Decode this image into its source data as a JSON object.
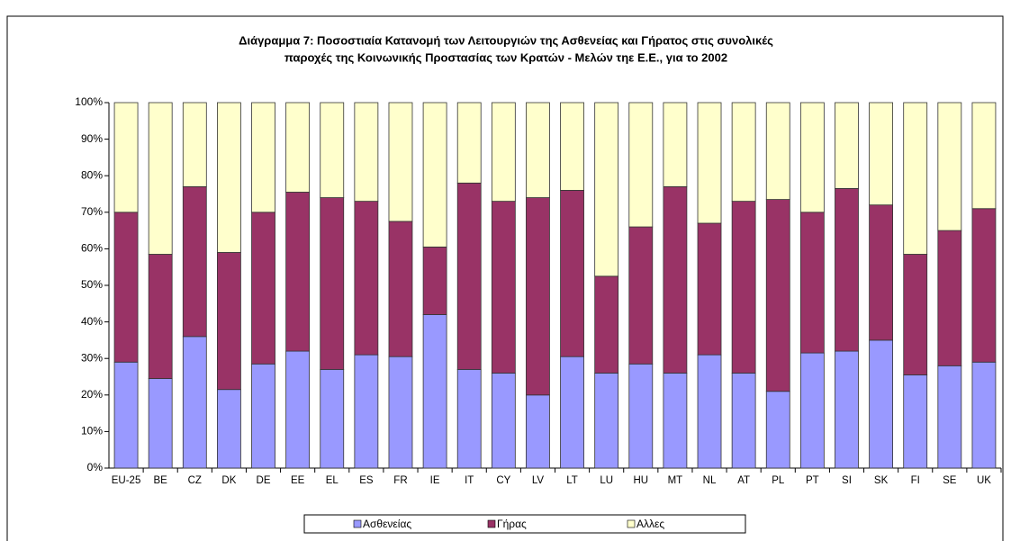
{
  "chart_data": {
    "type": "stacked_bar",
    "title": [
      "Διάγραμμα 7: Ποσοστιαία Κατανομή των Λειτουργιών της Ασθενείας και Γήρατος στις συνολικές",
      "παροχές της Κοινωνικής Προστασίας των Κρατών - Μελών τηε Ε.Ε., για το 2002"
    ],
    "categories": [
      "EU-25",
      "BE",
      "CZ",
      "DK",
      "DE",
      "EE",
      "EL",
      "ES",
      "FR",
      "IE",
      "IT",
      "CY",
      "LV",
      "LT",
      "LU",
      "HU",
      "MT",
      "NL",
      "AT",
      "PL",
      "PT",
      "SI",
      "SK",
      "FI",
      "SE",
      "UK"
    ],
    "series": [
      {
        "name": "Ασθενείας",
        "color": "#9999ff",
        "values": [
          29,
          24.5,
          36,
          21.5,
          28.5,
          32,
          27,
          31,
          30.5,
          42,
          27,
          26,
          20,
          30.5,
          26,
          28.5,
          26,
          31,
          26,
          21,
          31.5,
          32,
          35,
          25.5,
          28,
          29
        ]
      },
      {
        "name": "Γήρας",
        "color": "#993366",
        "values": [
          41,
          34,
          41,
          37.5,
          41.5,
          43.5,
          47,
          42,
          37,
          18.5,
          51,
          47,
          54,
          45.5,
          26.5,
          37.5,
          51,
          36,
          47,
          52.5,
          38.5,
          44.5,
          37,
          33,
          37,
          42
        ]
      },
      {
        "name": "Αλλες",
        "color": "#ffffcc",
        "values": [
          30,
          41.5,
          23,
          41,
          30,
          24.5,
          26,
          27,
          32.5,
          39.5,
          22,
          27,
          26,
          24,
          47.5,
          34,
          23,
          33,
          27,
          26.5,
          30,
          23.5,
          28,
          41.5,
          35,
          29
        ]
      }
    ],
    "ylim": [
      0,
      100
    ],
    "yticks": [
      {
        "value": 0,
        "label": "0%"
      },
      {
        "value": 10,
        "label": "10%"
      },
      {
        "value": 20,
        "label": "20%"
      },
      {
        "value": 30,
        "label": "30%"
      },
      {
        "value": 40,
        "label": "40%"
      },
      {
        "value": 50,
        "label": "50%"
      },
      {
        "value": 60,
        "label": "60%"
      },
      {
        "value": 70,
        "label": "70%"
      },
      {
        "value": 80,
        "label": "80%"
      },
      {
        "value": 90,
        "label": "90%"
      },
      {
        "value": 100,
        "label": "100%"
      }
    ],
    "legend": "bottom"
  }
}
